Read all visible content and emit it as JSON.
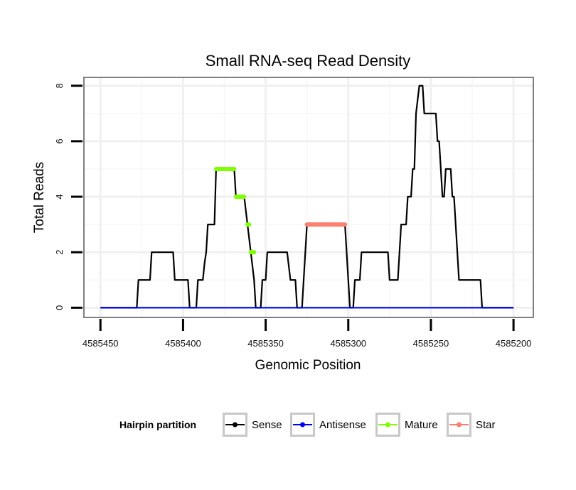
{
  "chart_data": {
    "type": "line",
    "title": "Small RNA-seq Read Density",
    "xlabel": "Genomic Position",
    "ylabel": "Total Reads",
    "xlim": [
      4585460,
      4585188
    ],
    "ylim": [
      -0.35,
      8.3
    ],
    "x_reversed": true,
    "xticks": [
      4585450,
      4585400,
      4585350,
      4585300,
      4585250,
      4585200
    ],
    "yticks": [
      0,
      2,
      4,
      6,
      8
    ],
    "grid": true,
    "legend": {
      "title": "Hairpin partition",
      "placement": "bottom",
      "entries": [
        {
          "name": "Sense",
          "color": "#000000"
        },
        {
          "name": "Antisense",
          "color": "#0000ff"
        },
        {
          "name": "Mature",
          "color": "#7fff00"
        },
        {
          "name": "Star",
          "color": "#fa8072"
        }
      ]
    },
    "series": [
      {
        "name": "Sense",
        "color": "#000000",
        "width": 2.2,
        "points": [
          [
            4585450,
            0
          ],
          [
            4585428,
            0
          ],
          [
            4585427,
            1
          ],
          [
            4585420,
            1
          ],
          [
            4585419,
            2
          ],
          [
            4585406,
            2
          ],
          [
            4585405,
            1
          ],
          [
            4585397,
            1
          ],
          [
            4585396,
            0
          ],
          [
            4585392,
            0
          ],
          [
            4585391,
            1
          ],
          [
            4585388,
            1
          ],
          [
            4585387,
            1.6
          ],
          [
            4585386,
            2
          ],
          [
            4585385,
            3
          ],
          [
            4585381,
            3
          ],
          [
            4585380,
            5
          ],
          [
            4585369,
            5
          ],
          [
            4585368,
            4
          ],
          [
            4585363,
            4
          ],
          [
            4585361,
            3
          ],
          [
            4585359,
            2
          ],
          [
            4585357,
            1
          ],
          [
            4585356,
            0
          ],
          [
            4585353,
            0
          ],
          [
            4585352,
            1
          ],
          [
            4585350,
            1
          ],
          [
            4585349,
            2
          ],
          [
            4585337,
            2
          ],
          [
            4585335,
            1
          ],
          [
            4585332,
            1
          ],
          [
            4585331,
            0
          ],
          [
            4585328,
            0
          ],
          [
            4585327,
            1
          ],
          [
            4585325,
            3
          ],
          [
            4585302,
            3
          ],
          [
            4585300,
            1
          ],
          [
            4585299,
            0
          ],
          [
            4585297,
            0
          ],
          [
            4585296,
            1
          ],
          [
            4585293,
            1
          ],
          [
            4585292,
            2
          ],
          [
            4585276,
            2
          ],
          [
            4585275,
            1
          ],
          [
            4585270,
            1
          ],
          [
            4585269,
            2
          ],
          [
            4585268,
            3
          ],
          [
            4585265,
            3
          ],
          [
            4585264,
            4
          ],
          [
            4585262,
            4
          ],
          [
            4585261,
            5
          ],
          [
            4585260,
            5
          ],
          [
            4585259,
            7
          ],
          [
            4585258,
            7.5
          ],
          [
            4585257,
            8
          ],
          [
            4585255,
            8
          ],
          [
            4585254,
            7
          ],
          [
            4585247,
            7
          ],
          [
            4585246,
            6
          ],
          [
            4585245,
            6
          ],
          [
            4585244,
            5
          ],
          [
            4585243,
            4
          ],
          [
            4585242,
            4
          ],
          [
            4585241,
            5
          ],
          [
            4585238,
            5
          ],
          [
            4585237,
            4
          ],
          [
            4585236,
            4
          ],
          [
            4585233,
            1
          ],
          [
            4585220,
            1
          ],
          [
            4585219,
            0
          ],
          [
            4585200,
            0
          ]
        ]
      },
      {
        "name": "Antisense",
        "color": "#0000ff",
        "width": 2.2,
        "points": [
          [
            4585450,
            0
          ],
          [
            4585200,
            0
          ]
        ]
      },
      {
        "name": "Mature",
        "color": "#7fff00",
        "width": 6,
        "segments": [
          [
            [
              4585380,
              5
            ],
            [
              4585369,
              5
            ]
          ],
          [
            [
              4585368,
              4
            ],
            [
              4585363,
              4
            ]
          ],
          [
            [
              4585361,
              3
            ],
            [
              4585360,
              3
            ]
          ],
          [
            [
              4585359,
              2
            ],
            [
              4585357,
              2
            ]
          ]
        ]
      },
      {
        "name": "Star",
        "color": "#fa8072",
        "width": 6,
        "segments": [
          [
            [
              4585325,
              3
            ],
            [
              4585302,
              3
            ]
          ]
        ]
      }
    ]
  }
}
